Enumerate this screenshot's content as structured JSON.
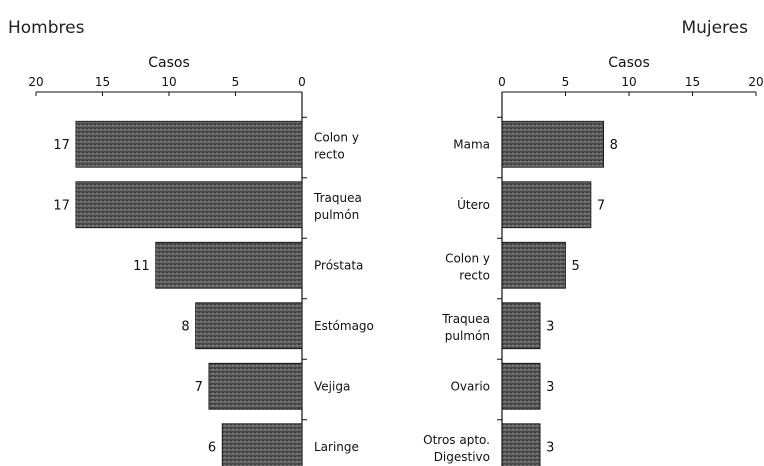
{
  "chart_data": [
    {
      "type": "bar",
      "orientation": "horizontal",
      "direction": "right-to-left",
      "title": "Hombres",
      "xlabel": "Casos",
      "xlim": [
        0,
        20
      ],
      "ticks": [
        "20",
        "15",
        "10",
        "5",
        "0"
      ],
      "categories": [
        "Colon y recto",
        "Traquea pulmón",
        "Próstata",
        "Estómago",
        "Vejiga",
        "Laringe"
      ],
      "values": [
        17,
        17,
        11,
        8,
        7,
        6
      ],
      "bar_color": "#6e6e6e"
    },
    {
      "type": "bar",
      "orientation": "horizontal",
      "direction": "left-to-right",
      "title": "Mujeres",
      "xlabel": "Casos",
      "xlim": [
        0,
        20
      ],
      "ticks": [
        "0",
        "5",
        "10",
        "15",
        "20"
      ],
      "categories": [
        "Mama",
        "Útero",
        "Colon y recto",
        "Traquea pulmón",
        "Ovario",
        "Otros apto. Digestivo"
      ],
      "values": [
        8,
        7,
        5,
        3,
        3,
        3
      ],
      "bar_color": "#6e6e6e"
    }
  ]
}
